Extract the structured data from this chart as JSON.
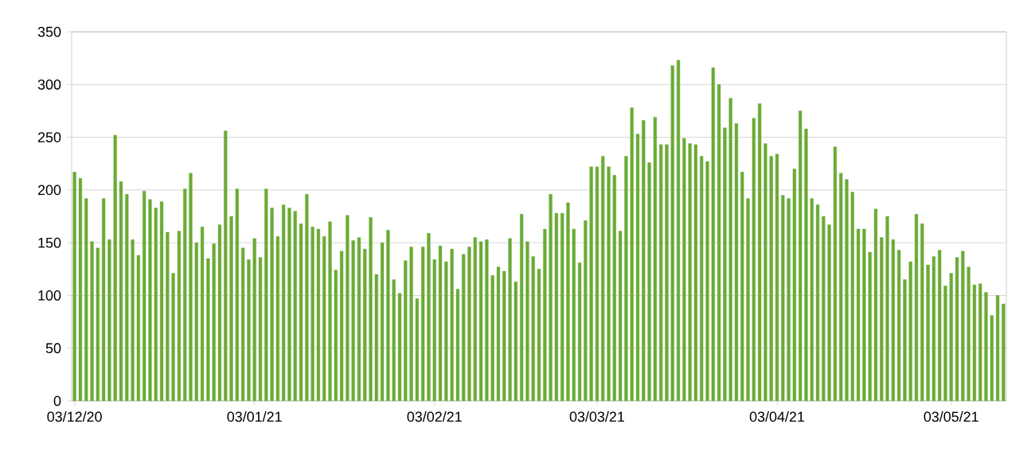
{
  "chart_data": {
    "type": "bar",
    "color": "#6aab35",
    "grid": "y",
    "xlim": [
      "2020-12-02T12:00",
      "2021-05-12T12:00"
    ],
    "xticks": [
      {
        "value": "2020-12-03",
        "label": "03/12/20"
      },
      {
        "value": "2021-01-03",
        "label": "03/01/21"
      },
      {
        "value": "2021-02-03",
        "label": "03/02/21"
      },
      {
        "value": "2021-03-03",
        "label": "03/03/21"
      },
      {
        "value": "2021-04-03",
        "label": "03/04/21"
      },
      {
        "value": "2021-05-03",
        "label": "03/05/21"
      }
    ],
    "ylim": [
      0,
      350
    ],
    "yticks": [
      0,
      50,
      100,
      150,
      200,
      250,
      300,
      350
    ],
    "x": [
      "2020-12-03",
      "2020-12-04",
      "2020-12-05",
      "2020-12-06",
      "2020-12-07",
      "2020-12-08",
      "2020-12-09",
      "2020-12-10",
      "2020-12-11",
      "2020-12-12",
      "2020-12-13",
      "2020-12-14",
      "2020-12-15",
      "2020-12-16",
      "2020-12-17",
      "2020-12-18",
      "2020-12-19",
      "2020-12-20",
      "2020-12-21",
      "2020-12-22",
      "2020-12-23",
      "2020-12-24",
      "2020-12-25",
      "2020-12-26",
      "2020-12-27",
      "2020-12-28",
      "2020-12-29",
      "2020-12-30",
      "2020-12-31",
      "2021-01-01",
      "2021-01-02",
      "2021-01-03",
      "2021-01-04",
      "2021-01-05",
      "2021-01-06",
      "2021-01-07",
      "2021-01-08",
      "2021-01-09",
      "2021-01-10",
      "2021-01-11",
      "2021-01-12",
      "2021-01-13",
      "2021-01-14",
      "2021-01-15",
      "2021-01-16",
      "2021-01-17",
      "2021-01-18",
      "2021-01-19",
      "2021-01-20",
      "2021-01-21",
      "2021-01-22",
      "2021-01-23",
      "2021-01-24",
      "2021-01-25",
      "2021-01-26",
      "2021-01-27",
      "2021-01-28",
      "2021-01-29",
      "2021-01-30",
      "2021-01-31",
      "2021-02-01",
      "2021-02-02",
      "2021-02-03",
      "2021-02-04",
      "2021-02-05",
      "2021-02-06",
      "2021-02-07",
      "2021-02-08",
      "2021-02-09",
      "2021-02-10",
      "2021-02-11",
      "2021-02-12",
      "2021-02-13",
      "2021-02-14",
      "2021-02-15",
      "2021-02-16",
      "2021-02-17",
      "2021-02-18",
      "2021-02-19",
      "2021-02-20",
      "2021-02-21",
      "2021-02-22",
      "2021-02-23",
      "2021-02-24",
      "2021-02-25",
      "2021-02-26",
      "2021-02-27",
      "2021-02-28",
      "2021-03-01",
      "2021-03-02",
      "2021-03-03",
      "2021-03-04",
      "2021-03-05",
      "2021-03-06",
      "2021-03-07",
      "2021-03-08",
      "2021-03-09",
      "2021-03-10",
      "2021-03-11",
      "2021-03-12",
      "2021-03-13",
      "2021-03-14",
      "2021-03-15",
      "2021-03-16",
      "2021-03-17",
      "2021-03-18",
      "2021-03-19",
      "2021-03-20",
      "2021-03-21",
      "2021-03-22",
      "2021-03-23",
      "2021-03-24",
      "2021-03-25",
      "2021-03-26",
      "2021-03-27",
      "2021-03-28",
      "2021-03-29",
      "2021-03-30",
      "2021-03-31",
      "2021-04-01",
      "2021-04-02",
      "2021-04-03",
      "2021-04-04",
      "2021-04-05",
      "2021-04-06",
      "2021-04-07",
      "2021-04-08",
      "2021-04-09",
      "2021-04-10",
      "2021-04-11",
      "2021-04-12",
      "2021-04-13",
      "2021-04-14",
      "2021-04-15",
      "2021-04-16",
      "2021-04-17",
      "2021-04-18",
      "2021-04-19",
      "2021-04-20",
      "2021-04-21",
      "2021-04-22",
      "2021-04-23",
      "2021-04-24",
      "2021-04-25",
      "2021-04-26",
      "2021-04-27",
      "2021-04-28",
      "2021-04-29",
      "2021-04-30",
      "2021-05-01",
      "2021-05-02",
      "2021-05-03",
      "2021-05-04",
      "2021-05-05",
      "2021-05-06",
      "2021-05-07",
      "2021-05-08",
      "2021-05-09",
      "2021-05-10",
      "2021-05-11",
      "2021-05-12"
    ],
    "values": [
      217,
      211,
      192,
      151,
      145,
      192,
      153,
      252,
      208,
      196,
      153,
      138,
      199,
      191,
      183,
      189,
      160,
      121,
      161,
      201,
      216,
      150,
      165,
      135,
      149,
      167,
      256,
      175,
      201,
      145,
      134,
      154,
      136,
      201,
      183,
      156,
      186,
      183,
      180,
      168,
      196,
      165,
      163,
      156,
      170,
      124,
      142,
      176,
      152,
      155,
      144,
      174,
      120,
      150,
      162,
      115,
      102,
      133,
      146,
      97,
      146,
      159,
      134,
      147,
      132,
      144,
      106,
      139,
      146,
      155,
      151,
      153,
      119,
      127,
      123,
      154,
      113,
      177,
      151,
      137,
      125,
      163,
      196,
      178,
      178,
      188,
      163,
      131,
      171,
      222,
      222,
      232,
      222,
      214,
      161,
      232,
      278,
      253,
      266,
      226,
      269,
      243,
      243,
      318,
      323,
      249,
      244,
      243,
      232,
      227,
      316,
      300,
      259,
      287,
      263,
      217,
      192,
      268,
      282,
      244,
      232,
      234,
      195,
      192,
      220,
      275,
      258,
      192,
      186,
      175,
      167,
      241,
      216,
      210,
      198,
      163,
      163,
      141,
      182,
      155,
      175,
      153,
      143,
      115,
      132,
      177,
      168,
      129,
      137,
      143,
      109,
      121,
      136,
      142,
      127,
      110,
      111,
      103,
      81,
      100,
      92
    ]
  }
}
